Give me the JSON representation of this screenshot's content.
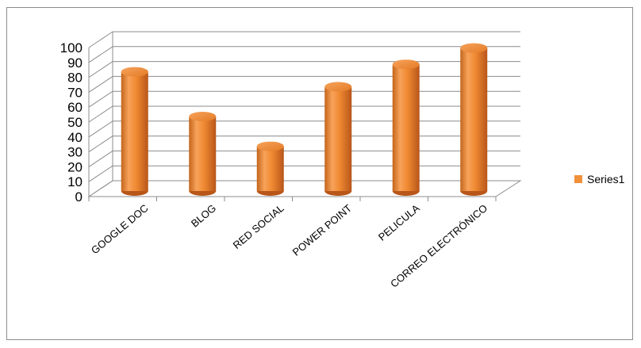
{
  "chart_data": {
    "type": "bar",
    "style": "3d-cylinder",
    "categories": [
      "GOOGLE DOC",
      "BLOG",
      "RED SOCIAL",
      "POWER POINT",
      "PELICULA",
      "CORREO ELECTRÓNICO"
    ],
    "series": [
      {
        "name": "Series1",
        "values": [
          80,
          50,
          30,
          70,
          85,
          96
        ],
        "color": "#f0913a"
      }
    ],
    "y_ticks": [
      "0",
      "10",
      "20",
      "30",
      "40",
      "50",
      "60",
      "70",
      "80",
      "90",
      "100"
    ],
    "ylim": [
      0,
      100
    ],
    "grid": true,
    "legend_position": "right"
  }
}
